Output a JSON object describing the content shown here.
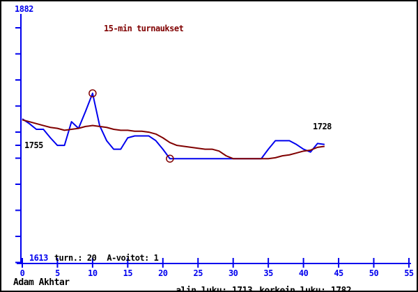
{
  "title": "15-min turnaukset",
  "colors": {
    "axis": "#0000ee",
    "rating_line": "#0000ee",
    "average_line": "#800000",
    "title": "#800000",
    "annotation": "#000000"
  },
  "y_axis": {
    "top_label": "1882",
    "bottom_label": "1613"
  },
  "annotations": {
    "start_value": "1755",
    "end_value": "1728"
  },
  "stats_line": {
    "tournaments": "turn.: 20",
    "a_wins": "A-voitot: 1"
  },
  "x_axis": {
    "tick_labels": [
      "0",
      "5",
      "10",
      "15",
      "20",
      "25",
      "30",
      "35",
      "40",
      "45",
      "50",
      "55"
    ]
  },
  "footer": {
    "player": "Adam Akhtar",
    "lowest": "alin luku: 1713",
    "highest": "korkein luku: 1782"
  },
  "chart_data": {
    "type": "line",
    "title": "15-min turnaukset",
    "xlabel": "",
    "ylabel": "",
    "x_ticks": [
      0,
      5,
      10,
      15,
      20,
      25,
      30,
      35,
      40,
      45,
      50,
      55
    ],
    "x_range": [
      0,
      55
    ],
    "y_range": [
      1613,
      1882
    ],
    "grid": false,
    "legend_position": "none",
    "x": [
      0,
      1,
      2,
      3,
      4,
      5,
      6,
      7,
      8,
      9,
      10,
      11,
      12,
      13,
      14,
      15,
      16,
      17,
      18,
      19,
      20,
      21,
      22,
      23,
      24,
      25,
      26,
      27,
      28,
      29,
      30,
      31,
      32,
      33,
      34,
      35,
      36,
      37,
      38,
      39,
      40,
      41,
      42,
      43
    ],
    "series": [
      {
        "name": "rating",
        "color": "#0000ee",
        "values": [
          1755,
          1750,
          1744,
          1744,
          1735,
          1727,
          1727,
          1752,
          1745,
          1763,
          1782,
          1748,
          1732,
          1723,
          1723,
          1735,
          1737,
          1737,
          1737,
          1732,
          1723,
          1713,
          1713,
          1713,
          1713,
          1713,
          1713,
          1713,
          1713,
          1713,
          1713,
          1713,
          1713,
          1713,
          1713,
          1723,
          1732,
          1732,
          1732,
          1728,
          1723,
          1720,
          1729,
          1728
        ]
      },
      {
        "name": "average",
        "color": "#800000",
        "values": [
          1754,
          1752,
          1750,
          1748,
          1746,
          1745,
          1743,
          1744,
          1745,
          1747,
          1748,
          1747,
          1746,
          1744,
          1743,
          1743,
          1742,
          1742,
          1741,
          1739,
          1735,
          1730,
          1727,
          1726,
          1725,
          1724,
          1723,
          1723,
          1721,
          1716,
          1713,
          1713,
          1713,
          1713,
          1713,
          1713,
          1714,
          1716,
          1717,
          1719,
          1721,
          1722,
          1725,
          1726
        ]
      }
    ],
    "markers": [
      {
        "x": 10,
        "value": 1782,
        "label": "korkein luku"
      },
      {
        "x": 21,
        "value": 1713,
        "label": "alin luku"
      }
    ],
    "annotations": [
      {
        "text": "1882",
        "position": "axis-top"
      },
      {
        "text": "1755",
        "position": "series-start"
      },
      {
        "text": "1728",
        "position": "series-end"
      },
      {
        "text": "1613",
        "position": "axis-bottom"
      }
    ]
  }
}
